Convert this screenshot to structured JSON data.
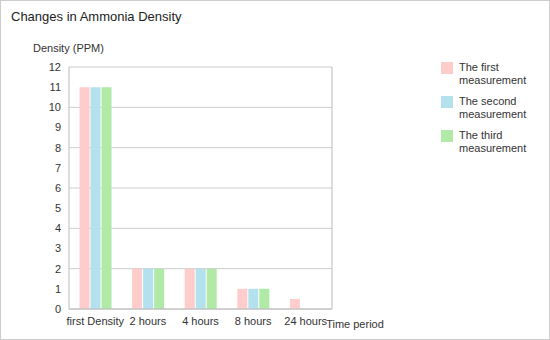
{
  "chart_data": {
    "type": "bar",
    "title": "Changes in Ammonia Density",
    "y_label": "Density (PPM)",
    "x_label": "Time period",
    "categories": [
      "first Density",
      "2 hours",
      "4 hours",
      "8 hours",
      "24 hours"
    ],
    "series": [
      {
        "name": "The first measurement",
        "color": "#ffcccc",
        "values": [
          11,
          2,
          2,
          1,
          0.5
        ]
      },
      {
        "name": "The second measurement",
        "color": "#b3e1ee",
        "values": [
          11,
          2,
          2,
          1,
          null
        ]
      },
      {
        "name": "The third measurement",
        "color": "#b0eaa6",
        "values": [
          11,
          2,
          2,
          1,
          null
        ]
      }
    ],
    "ylim": [
      0,
      12
    ],
    "yticks": [
      0,
      1,
      2,
      3,
      4,
      5,
      6,
      7,
      8,
      9,
      10,
      11,
      12
    ],
    "grid": true,
    "legend": "right"
  }
}
